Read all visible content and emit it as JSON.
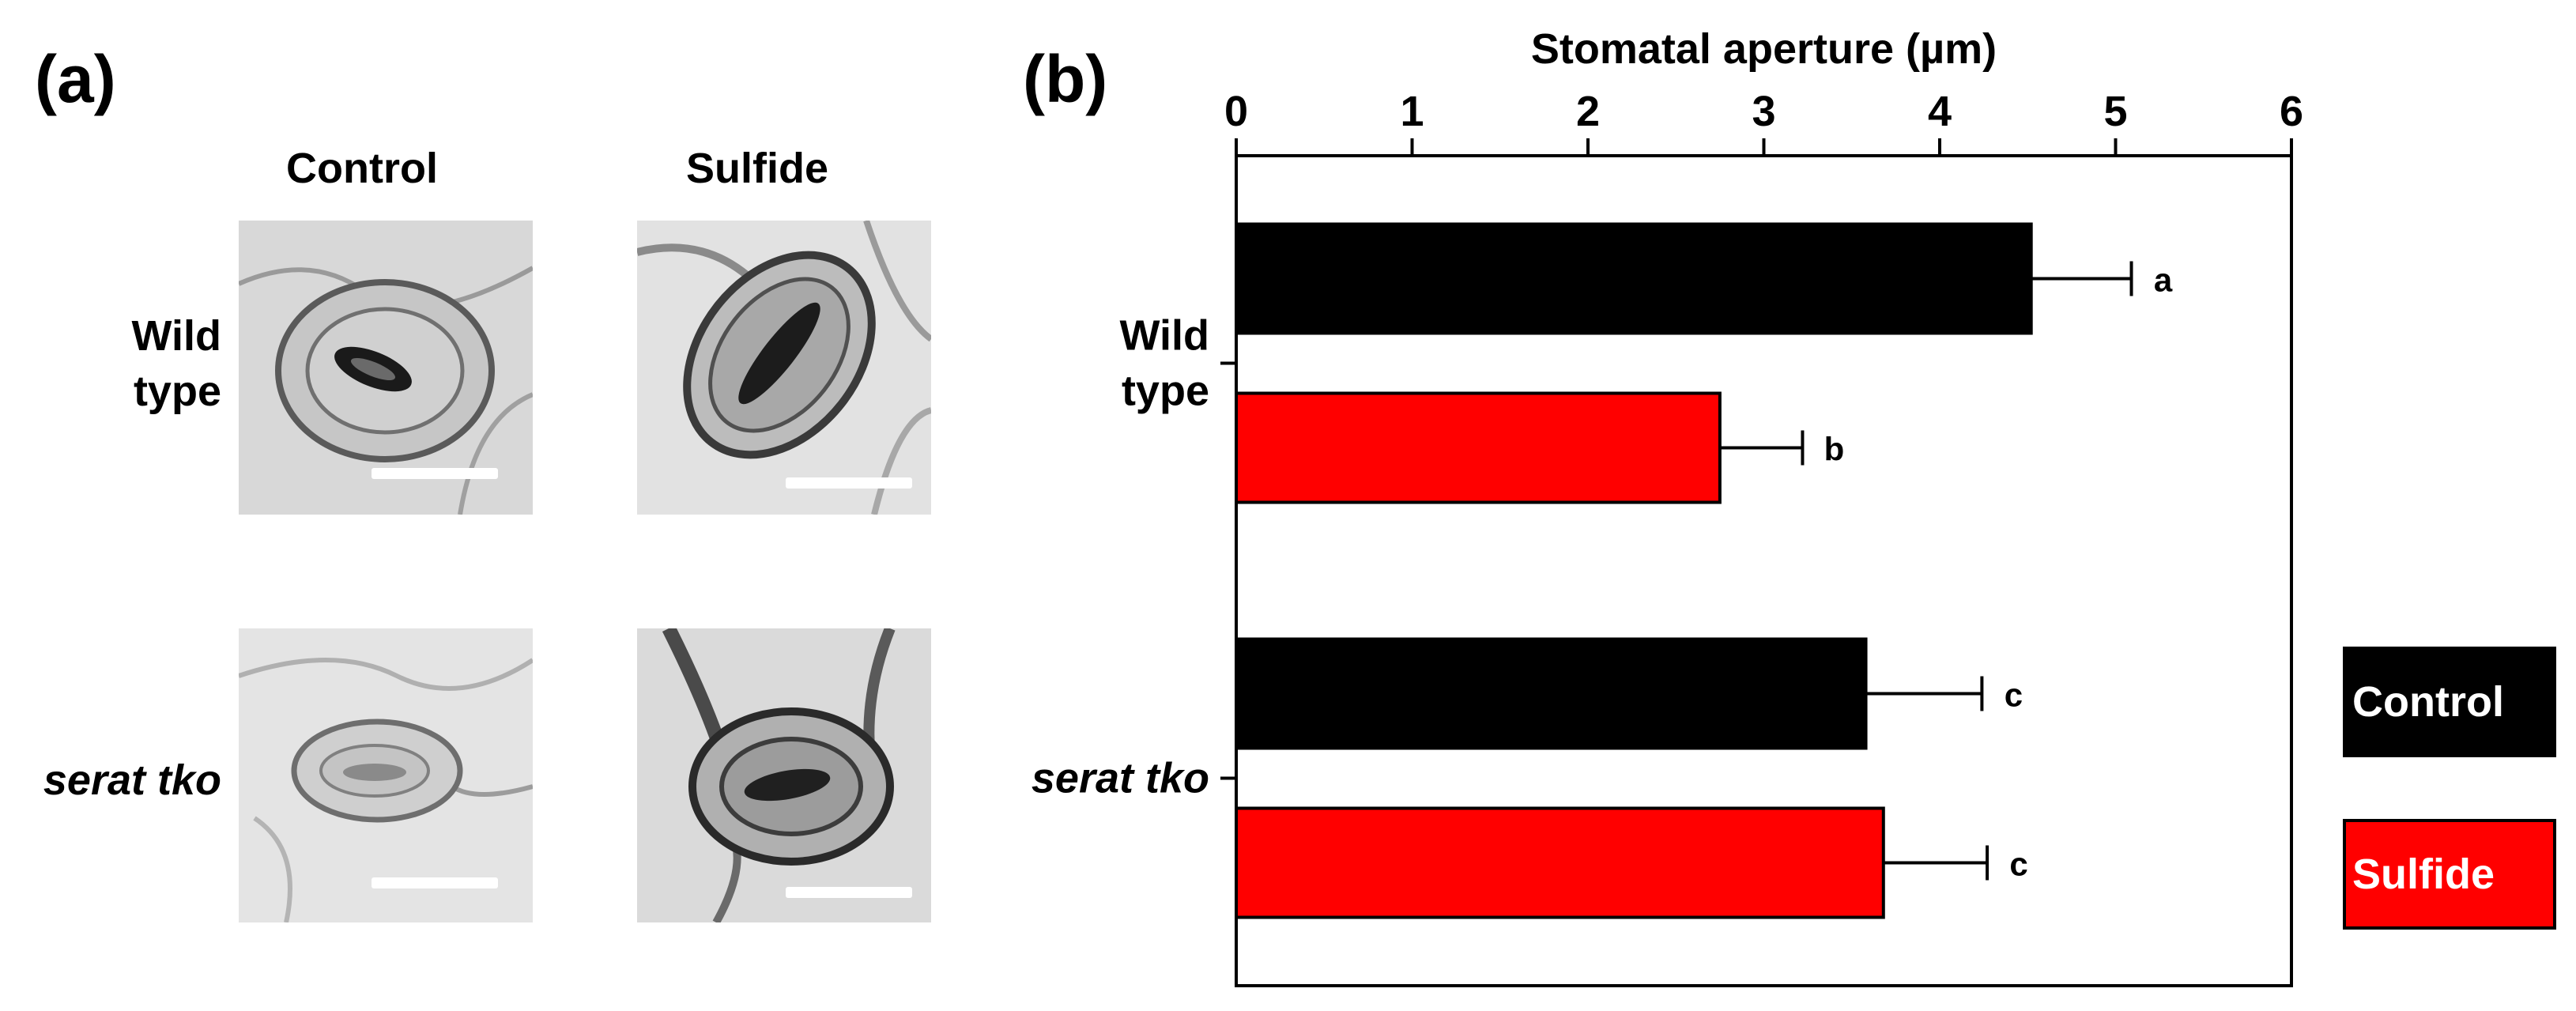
{
  "panels": {
    "a_label": "(a)",
    "b_label": "(b)"
  },
  "micrographs": {
    "col_labels": [
      "Control",
      "Sulfide"
    ],
    "row_labels": [
      [
        "Wild",
        "type"
      ],
      [
        "serat tko"
      ]
    ]
  },
  "chart_data": {
    "type": "bar",
    "orientation": "horizontal",
    "title": "Stomatal aperture (µm)",
    "xlabel": "Stomatal aperture (µm)",
    "ylabel": "",
    "xlim": [
      0,
      6
    ],
    "xticks": [
      "0",
      "1",
      "2",
      "3",
      "4",
      "5",
      "6"
    ],
    "x_axis_position": "top",
    "categories": [
      [
        "Wild",
        "type"
      ],
      [
        "serat tko"
      ]
    ],
    "series": [
      {
        "name": "Control",
        "color": "#000000",
        "values": [
          4.52,
          3.58
        ],
        "errors": [
          0.57,
          0.66
        ],
        "letters": [
          "a",
          "c"
        ]
      },
      {
        "name": "Sulfide",
        "color": "#ff0000",
        "values": [
          2.75,
          3.68
        ],
        "errors": [
          0.47,
          0.59
        ],
        "letters": [
          "b",
          "c"
        ]
      }
    ],
    "grid": false,
    "legend_position": "right"
  }
}
